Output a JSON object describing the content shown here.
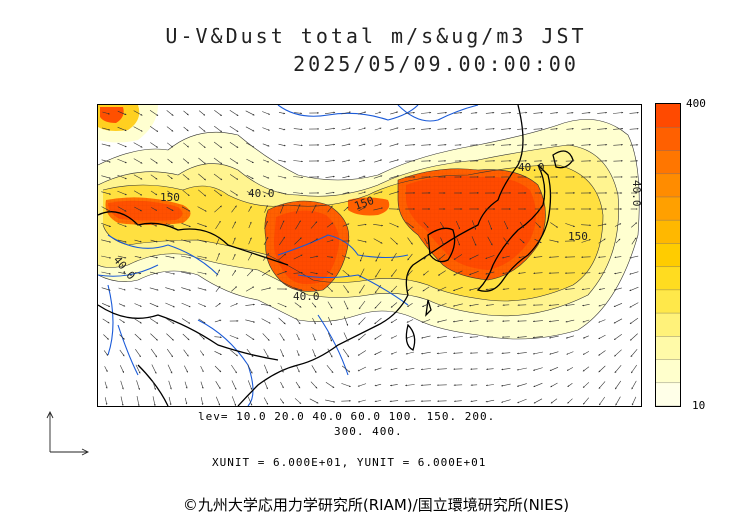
{
  "header": {
    "title_line1": "U-V&Dust total m/s&ug/m3 JST",
    "title_line2": "2025/05/09.00:00:00"
  },
  "colorbar": {
    "max_label": "400",
    "min_label": "10",
    "colors": [
      "#ffffe8",
      "#ffffcc",
      "#fffaa8",
      "#fff27a",
      "#ffe84a",
      "#ffdc20",
      "#ffcc00",
      "#ffb800",
      "#ffa000",
      "#ff8c00",
      "#ff7600",
      "#ff6000",
      "#ff4a00"
    ]
  },
  "levels": {
    "line1": "lev= 10.0 20.0 40.0 60.0 100. 150. 200.",
    "line2": "300. 400."
  },
  "units": "XUNIT = 6.000E+01, YUNIT = 6.000E+01",
  "contour_labels": [
    "150",
    "40.0",
    "40.0",
    "150",
    "40.0",
    "150",
    "40.0",
    "40.0"
  ],
  "copyright": "©九州大学応用力学研究所(RIAM)/国立環境研究所(NIES)"
}
